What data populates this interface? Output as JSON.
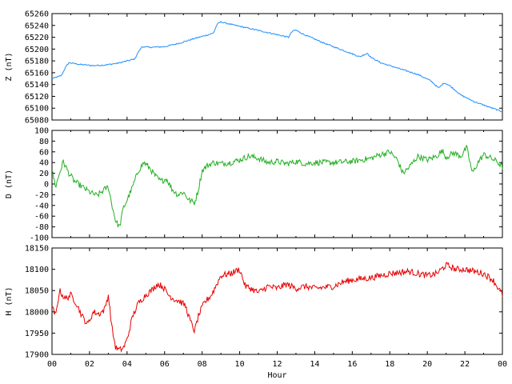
{
  "chart_data": [
    {
      "type": "line",
      "ylabel": "Z (nT)",
      "ylim": [
        65080,
        65260
      ],
      "yticks": [
        65080,
        65100,
        65120,
        65140,
        65160,
        65180,
        65200,
        65220,
        65240,
        65260
      ],
      "xlim": [
        0,
        24
      ],
      "series": [
        {
          "color": "#1e90ff",
          "x": [
            0,
            0.5,
            0.7,
            0.9,
            1.5,
            2.2,
            2.8,
            3.5,
            4.4,
            4.6,
            4.8,
            5.2,
            6.0,
            6.8,
            7.6,
            8.3,
            8.6,
            8.8,
            9.0,
            9.5,
            10.5,
            11.5,
            12.6,
            12.8,
            13.0,
            13.4,
            14.5,
            15.5,
            16.4,
            16.8,
            17.0,
            17.5,
            18.5,
            19.5,
            20.2,
            20.6,
            20.9,
            21.2,
            21.8,
            22.5,
            23.2,
            24.0
          ],
          "y": [
            65150,
            65155,
            65168,
            65177,
            65174,
            65172,
            65173,
            65176,
            65183,
            65195,
            65204,
            65203,
            65204,
            65210,
            65218,
            65224,
            65227,
            65242,
            65246,
            65242,
            65235,
            65228,
            65220,
            65230,
            65232,
            65225,
            65210,
            65198,
            65187,
            65193,
            65186,
            65177,
            65167,
            65157,
            65146,
            65134,
            65143,
            65138,
            65122,
            65111,
            65103,
            65094
          ]
        }
      ]
    },
    {
      "type": "line",
      "ylabel": "D (nT)",
      "ylim": [
        -100,
        100
      ],
      "yticks": [
        -100,
        -80,
        -60,
        -40,
        -20,
        0,
        20,
        40,
        60,
        80,
        100
      ],
      "xlim": [
        0,
        24
      ],
      "series": [
        {
          "color": "#22b022",
          "x": [
            0,
            0.2,
            0.4,
            0.6,
            0.9,
            1.2,
            1.6,
            2.0,
            2.4,
            2.8,
            3.0,
            3.2,
            3.4,
            3.6,
            3.8,
            4.0,
            4.3,
            4.6,
            4.9,
            5.2,
            5.5,
            5.8,
            6.1,
            6.4,
            6.7,
            7.0,
            7.3,
            7.6,
            7.8,
            8.0,
            8.3,
            8.6,
            9.0,
            9.5,
            10.0,
            10.5,
            11.0,
            11.5,
            12.0,
            12.5,
            13.0,
            13.5,
            14.0,
            15.0,
            16.0,
            17.0,
            17.5,
            18.0,
            18.4,
            18.7,
            19.0,
            19.5,
            20.0,
            20.5,
            20.8,
            21.0,
            21.4,
            21.8,
            22.1,
            22.4,
            22.7,
            23.0,
            23.4,
            23.7,
            24.0
          ],
          "y": [
            25,
            -5,
            20,
            42,
            20,
            5,
            -5,
            -15,
            -22,
            -10,
            -5,
            -40,
            -70,
            -80,
            -45,
            -30,
            -5,
            25,
            40,
            30,
            15,
            5,
            10,
            -10,
            -20,
            -15,
            -30,
            -35,
            -10,
            25,
            35,
            40,
            38,
            40,
            45,
            52,
            48,
            40,
            42,
            38,
            42,
            38,
            40,
            40,
            42,
            48,
            55,
            60,
            45,
            20,
            30,
            52,
            45,
            52,
            62,
            50,
            58,
            52,
            68,
            20,
            40,
            55,
            48,
            42,
            32
          ]
        }
      ]
    },
    {
      "type": "line",
      "ylabel": "H (nT)",
      "ylim": [
        17900,
        18150
      ],
      "yticks": [
        17900,
        17950,
        18000,
        18050,
        18100,
        18150
      ],
      "xlim": [
        0,
        24
      ],
      "xticks": [
        "00",
        "02",
        "04",
        "06",
        "08",
        "10",
        "12",
        "14",
        "16",
        "18",
        "20",
        "22",
        "00"
      ],
      "xlabel": "Hour",
      "series": [
        {
          "color": "#e60000",
          "x": [
            0,
            0.2,
            0.4,
            0.7,
            1.0,
            1.3,
            1.6,
            1.9,
            2.2,
            2.5,
            2.8,
            3.0,
            3.2,
            3.4,
            3.6,
            3.8,
            4.0,
            4.3,
            4.6,
            5.0,
            5.3,
            5.6,
            5.9,
            6.2,
            6.5,
            6.8,
            7.1,
            7.4,
            7.6,
            7.8,
            8.1,
            8.5,
            9.0,
            9.5,
            10.0,
            10.3,
            10.6,
            11.0,
            11.5,
            12.0,
            12.5,
            13.0,
            13.5,
            14.0,
            15.0,
            15.5,
            16.0,
            17.0,
            18.0,
            19.0,
            20.0,
            20.5,
            21.0,
            21.5,
            22.0,
            22.5,
            23.0,
            23.5,
            24.0
          ],
          "y": [
            18010,
            17990,
            18050,
            18030,
            18040,
            18020,
            17990,
            17970,
            18000,
            17995,
            18005,
            18040,
            17960,
            17915,
            17910,
            17915,
            17935,
            17990,
            18020,
            18040,
            18050,
            18065,
            18060,
            18040,
            18030,
            18025,
            18015,
            17975,
            17955,
            17990,
            18020,
            18040,
            18085,
            18090,
            18100,
            18060,
            18055,
            18045,
            18060,
            18055,
            18065,
            18055,
            18060,
            18055,
            18060,
            18070,
            18075,
            18080,
            18090,
            18095,
            18085,
            18090,
            18110,
            18100,
            18100,
            18095,
            18090,
            18075,
            18040
          ]
        }
      ]
    }
  ]
}
